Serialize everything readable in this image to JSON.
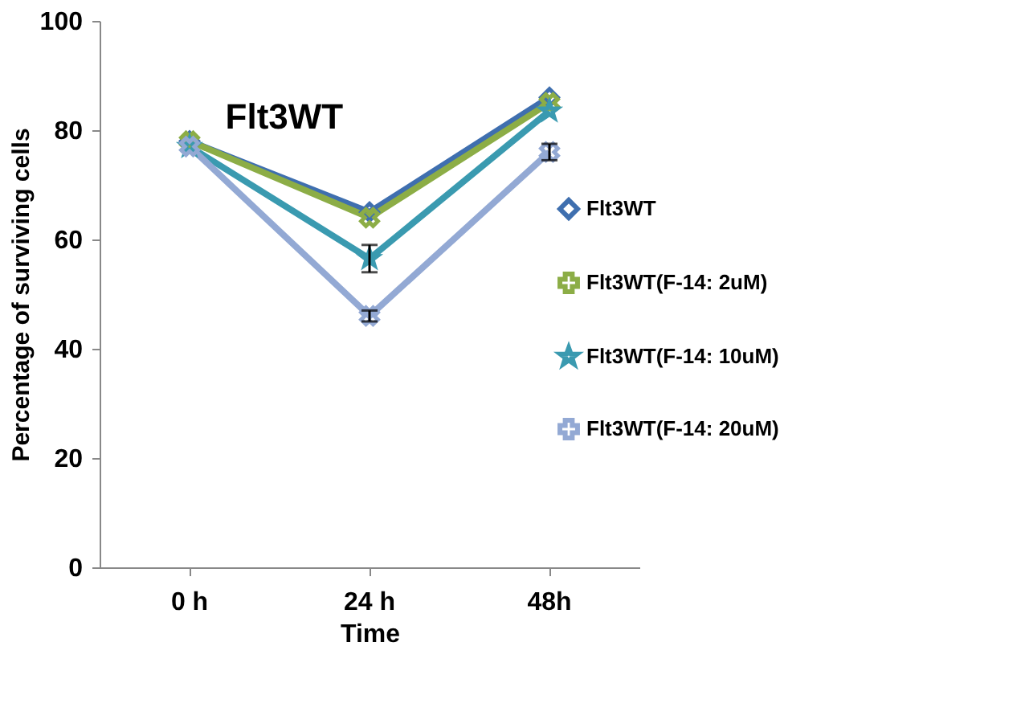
{
  "chart_data": {
    "type": "line",
    "title": "Flt3WT",
    "xlabel": "Time",
    "ylabel": "Percentage  of surviving cells",
    "categories": [
      "0 h",
      "24 h",
      "48h"
    ],
    "ylim": [
      0,
      100
    ],
    "yticks": [
      0,
      20,
      40,
      60,
      80,
      100
    ],
    "grid": false,
    "legend": "right",
    "line_style": "solid",
    "series": [
      {
        "name": "Flt3WT",
        "color": "#3f6faf",
        "marker": "diamond",
        "values": [
          78,
          65,
          86
        ]
      },
      {
        "name": "Flt3WT(F-14: 2uM)",
        "color": "#8cad46",
        "marker": "cross",
        "values": [
          78,
          64,
          85
        ]
      },
      {
        "name": "Flt3WT(F-14: 10uM)",
        "color": "#3a9ab0",
        "marker": "star",
        "values": [
          77,
          56.5,
          83.5
        ],
        "errors": [
          null,
          2.5,
          null
        ]
      },
      {
        "name": "Flt3WT(F-14: 20uM)",
        "color": "#93a9d4",
        "marker": "cross",
        "values": [
          77,
          46,
          76
        ],
        "errors": [
          null,
          1,
          1.5
        ]
      }
    ]
  }
}
